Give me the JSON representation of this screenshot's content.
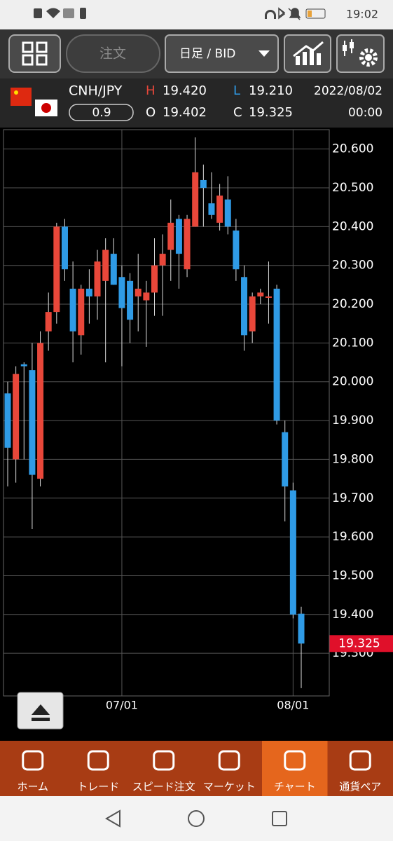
{
  "status_bar": {
    "time": "19:02"
  },
  "toolbar": {
    "order_button": "注文",
    "timeframe": "日足 / BID"
  },
  "header": {
    "pair": "CNH/JPY",
    "spread": "0.9",
    "high_label": "H",
    "high": "19.420",
    "low_label": "L",
    "low": "19.210",
    "open_label": "O",
    "open": "19.402",
    "close_label": "C",
    "close": "19.325",
    "date": "2022/08/02",
    "time": "00:00"
  },
  "chart_data": {
    "type": "candlestick",
    "categories": [
      null,
      null,
      null,
      null,
      null,
      null,
      null,
      null,
      null,
      null,
      null,
      null,
      null,
      null,
      "07/01",
      null,
      null,
      null,
      null,
      null,
      null,
      null,
      null,
      null,
      null,
      null,
      null,
      null,
      null,
      null,
      null,
      null,
      null,
      null,
      null,
      "08/01",
      null
    ],
    "open": [
      19.97,
      19.8,
      20.045,
      20.03,
      19.75,
      20.13,
      20.18,
      20.4,
      20.24,
      20.12,
      20.24,
      20.22,
      20.26,
      20.33,
      20.27,
      20.26,
      20.22,
      20.21,
      20.23,
      20.3,
      20.34,
      20.42,
      20.29,
      20.4,
      20.52,
      20.46,
      20.41,
      20.47,
      20.39,
      20.27,
      20.13,
      20.22,
      20.22,
      20.24,
      19.87,
      19.72,
      19.402
    ],
    "high": [
      20.0,
      20.04,
      20.05,
      20.1,
      20.13,
      20.23,
      20.41,
      20.42,
      20.31,
      20.25,
      20.29,
      20.34,
      20.37,
      20.37,
      20.3,
      20.28,
      20.33,
      20.26,
      20.37,
      20.38,
      20.47,
      20.43,
      20.43,
      20.63,
      20.56,
      20.54,
      20.51,
      20.53,
      20.42,
      20.3,
      20.23,
      20.24,
      20.31,
      20.25,
      19.9,
      19.74,
      19.42
    ],
    "low": [
      19.73,
      19.74,
      19.8,
      19.62,
      19.73,
      20.08,
      20.15,
      20.26,
      20.05,
      20.07,
      20.15,
      20.16,
      20.05,
      20.25,
      20.04,
      20.1,
      20.13,
      20.09,
      20.17,
      20.17,
      20.26,
      20.24,
      20.27,
      20.4,
      20.4,
      20.42,
      20.39,
      20.38,
      20.26,
      20.08,
      20.1,
      20.2,
      20.15,
      19.89,
      19.64,
      19.39,
      19.21
    ],
    "close": [
      19.83,
      20.02,
      20.04,
      19.76,
      20.1,
      20.18,
      20.4,
      20.29,
      20.13,
      20.24,
      20.22,
      20.31,
      20.34,
      20.25,
      20.19,
      20.16,
      20.24,
      20.23,
      20.3,
      20.33,
      20.41,
      20.33,
      20.42,
      20.54,
      20.5,
      20.43,
      20.48,
      20.4,
      20.29,
      20.12,
      20.22,
      20.23,
      20.22,
      19.9,
      19.73,
      19.4,
      19.325
    ],
    "up_color": "#e8473a",
    "down_color": "#2f9be6",
    "ylim": [
      19.19,
      20.65
    ],
    "yticks": [
      {
        "value": 20.6,
        "label": "20.600"
      },
      {
        "value": 20.5,
        "label": "20.500"
      },
      {
        "value": 20.4,
        "label": "20.400"
      },
      {
        "value": 20.3,
        "label": "20.300"
      },
      {
        "value": 20.2,
        "label": "20.200"
      },
      {
        "value": 20.1,
        "label": "20.100"
      },
      {
        "value": 20.0,
        "label": "20.000"
      },
      {
        "value": 19.9,
        "label": "19.900"
      },
      {
        "value": 19.8,
        "label": "19.800"
      },
      {
        "value": 19.7,
        "label": "19.700"
      },
      {
        "value": 19.6,
        "label": "19.600"
      },
      {
        "value": 19.5,
        "label": "19.500"
      },
      {
        "value": 19.4,
        "label": "19.400"
      },
      {
        "value": 19.3,
        "label": "19.300"
      }
    ],
    "grid": true,
    "current_price": 19.325,
    "current_price_color": "#e0102a"
  },
  "nav": {
    "tabs": [
      "ホーム",
      "トレード",
      "スピード注文",
      "マーケット",
      "チャート",
      "通貨ペア"
    ],
    "active": 4
  }
}
